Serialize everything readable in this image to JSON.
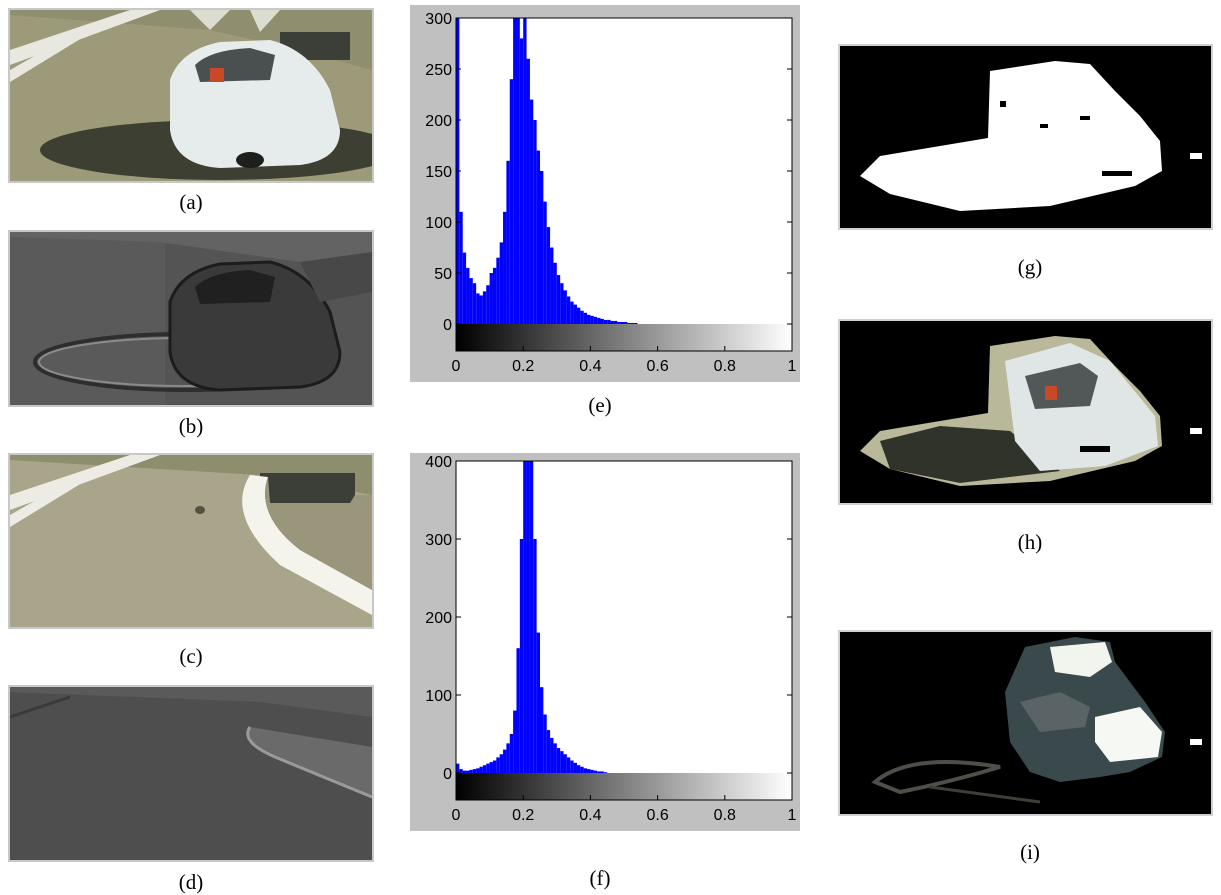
{
  "captions": {
    "a": "(a)",
    "b": "(b)",
    "c": "(c)",
    "d": "(d)",
    "e": "(e)",
    "f": "(f)",
    "g": "(g)",
    "h": "(h)",
    "i": "(i)"
  },
  "colors": {
    "bar": "#0000ff",
    "frame": "#c0c0c0",
    "mask_bg": "#000000"
  },
  "chart_data": [
    {
      "type": "bar",
      "ylim": [
        0,
        300
      ],
      "yticks": [
        "0",
        "50",
        "100",
        "150",
        "200",
        "250",
        "300"
      ],
      "xticks": [
        "0",
        "0.2",
        "0.4",
        "0.6",
        "0.8",
        "1"
      ],
      "xlim": [
        0,
        1
      ],
      "x": [
        0.005,
        0.015,
        0.025,
        0.035,
        0.045,
        0.055,
        0.065,
        0.075,
        0.085,
        0.095,
        0.105,
        0.115,
        0.125,
        0.135,
        0.145,
        0.155,
        0.165,
        0.175,
        0.185,
        0.195,
        0.205,
        0.215,
        0.225,
        0.235,
        0.245,
        0.255,
        0.265,
        0.275,
        0.285,
        0.295,
        0.305,
        0.315,
        0.325,
        0.335,
        0.345,
        0.355,
        0.365,
        0.375,
        0.385,
        0.395,
        0.405,
        0.415,
        0.425,
        0.435,
        0.445,
        0.455,
        0.465,
        0.475,
        0.485,
        0.495,
        0.505,
        0.515,
        0.525,
        0.535
      ],
      "values": [
        300,
        110,
        70,
        55,
        45,
        40,
        30,
        28,
        32,
        38,
        50,
        55,
        65,
        80,
        110,
        160,
        240,
        300,
        300,
        280,
        300,
        260,
        220,
        200,
        170,
        150,
        120,
        95,
        75,
        60,
        48,
        40,
        33,
        27,
        22,
        19,
        16,
        13,
        11,
        9,
        8,
        7,
        6,
        5,
        4,
        4,
        3,
        3,
        2,
        2,
        2,
        1,
        1,
        1
      ]
    },
    {
      "type": "bar",
      "ylim": [
        0,
        400
      ],
      "yticks": [
        "0",
        "100",
        "200",
        "300",
        "400"
      ],
      "xticks": [
        "0",
        "0.2",
        "0.4",
        "0.6",
        "0.8",
        "1"
      ],
      "xlim": [
        0,
        1
      ],
      "x": [
        0.005,
        0.015,
        0.025,
        0.035,
        0.045,
        0.055,
        0.065,
        0.075,
        0.085,
        0.095,
        0.105,
        0.115,
        0.125,
        0.135,
        0.145,
        0.155,
        0.165,
        0.175,
        0.185,
        0.195,
        0.205,
        0.215,
        0.225,
        0.235,
        0.245,
        0.255,
        0.265,
        0.275,
        0.285,
        0.295,
        0.305,
        0.315,
        0.325,
        0.335,
        0.345,
        0.355,
        0.365,
        0.375,
        0.385,
        0.395,
        0.405,
        0.415,
        0.425,
        0.435,
        0.445
      ],
      "values": [
        12,
        5,
        3,
        3,
        4,
        5,
        6,
        8,
        10,
        12,
        14,
        16,
        20,
        24,
        30,
        38,
        50,
        80,
        160,
        300,
        420,
        420,
        420,
        300,
        180,
        110,
        75,
        55,
        45,
        38,
        32,
        28,
        24,
        20,
        16,
        13,
        10,
        8,
        6,
        5,
        4,
        3,
        2,
        2,
        1
      ]
    }
  ]
}
